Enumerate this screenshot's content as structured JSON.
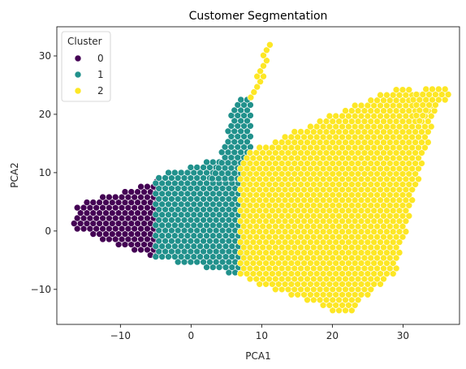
{
  "chart_data": {
    "type": "scatter",
    "title": "Customer Segmentation",
    "xlabel": "PCA1",
    "ylabel": "PCA2",
    "xlim": [
      -19,
      38
    ],
    "ylim": [
      -16,
      35
    ],
    "x_ticks": [
      -10,
      0,
      10,
      20,
      30
    ],
    "y_ticks": [
      -10,
      0,
      10,
      20,
      30
    ],
    "grid": false,
    "legend": {
      "title": "Cluster",
      "placement": "top-left",
      "entries": [
        {
          "label": "0",
          "color": "#440154"
        },
        {
          "label": "1",
          "color": "#21918c"
        },
        {
          "label": "2",
          "color": "#fde725"
        }
      ]
    },
    "marker_edge_color": "#ffffff",
    "regions": [
      {
        "cluster": "0",
        "color": "#440154",
        "polygon": [
          [
            -17,
            0.5
          ],
          [
            -16,
            4.5
          ],
          [
            -4,
            9
          ],
          [
            -4,
            -5
          ],
          [
            -17,
            0.5
          ]
        ]
      },
      {
        "cluster": "1",
        "color": "#21918c",
        "polygon": [
          [
            -5,
            9.5
          ],
          [
            7,
            13.5
          ],
          [
            8,
            9
          ],
          [
            8,
            -8
          ],
          [
            -5,
            -4.5
          ]
        ]
      },
      {
        "cluster": "1",
        "color": "#21918c",
        "polygon": [
          [
            3,
            9
          ],
          [
            6.5,
            23
          ],
          [
            8.5,
            23
          ],
          [
            8.5,
            9
          ]
        ]
      },
      {
        "cluster": "2",
        "color": "#fde725",
        "polygon": [
          [
            7,
            -8
          ],
          [
            22,
            -14.5
          ],
          [
            29,
            -7
          ],
          [
            35,
            22
          ],
          [
            30,
            25
          ],
          [
            22,
            21
          ],
          [
            8,
            13.5
          ],
          [
            7,
            11
          ]
        ]
      },
      {
        "cluster": "2",
        "color": "#fde725",
        "polygon": [
          [
            8,
            22
          ],
          [
            11,
            33.5
          ],
          [
            11.5,
            33
          ],
          [
            10,
            24
          ]
        ]
      },
      {
        "cluster": "2",
        "color": "#fde725",
        "polygon": [
          [
            31,
            24
          ],
          [
            36,
            25
          ],
          [
            37,
            23
          ],
          [
            33,
            20
          ],
          [
            32,
            18
          ]
        ]
      }
    ]
  }
}
